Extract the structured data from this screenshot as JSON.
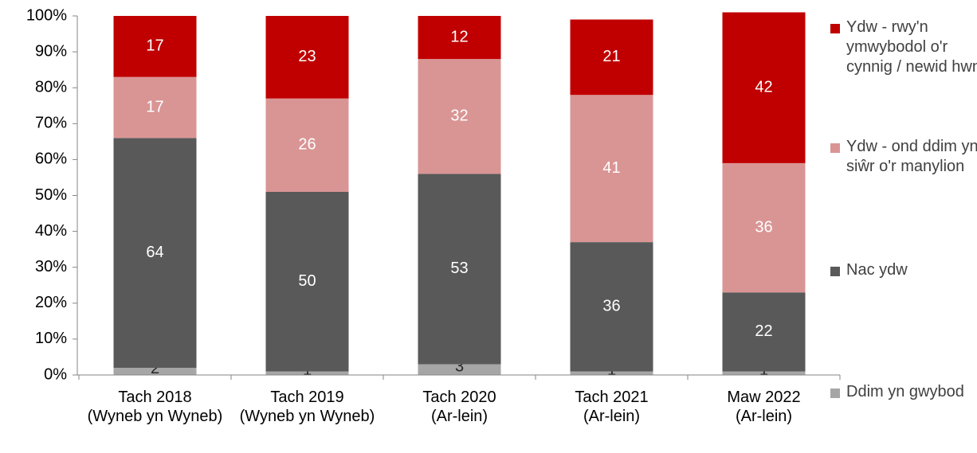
{
  "chart_data": {
    "type": "bar",
    "stacked": true,
    "categories": [
      "Tach 2018\n(Wyneb yn Wyneb)",
      "Tach 2019\n(Wyneb yn Wyneb)",
      "Tach 2020\n(Ar-lein)",
      "Tach 2021\n(Ar-lein)",
      "Maw 2022\n(Ar-lein)"
    ],
    "series": [
      {
        "name": "Ddim yn gwybod",
        "color": "#a6a6a6",
        "values": [
          2,
          1,
          3,
          1,
          1
        ]
      },
      {
        "name": "Nac ydw",
        "color": "#595959",
        "values": [
          64,
          50,
          53,
          36,
          22
        ]
      },
      {
        "name": "Ydw - ond ddim yn siŵr o'r manylion",
        "color": "#d99594",
        "values": [
          17,
          26,
          32,
          41,
          36
        ]
      },
      {
        "name": "Ydw - rwy'n ymwybodol o'r cynnig / newid hwn",
        "color": "#c00000",
        "values": [
          17,
          23,
          12,
          21,
          42
        ]
      }
    ],
    "ylim": [
      0,
      100
    ],
    "yticks": [
      {
        "value": 0,
        "label": "0%"
      },
      {
        "value": 10,
        "label": "10%"
      },
      {
        "value": 20,
        "label": "20%"
      },
      {
        "value": 30,
        "label": "30%"
      },
      {
        "value": 40,
        "label": "40%"
      },
      {
        "value": 50,
        "label": "50%"
      },
      {
        "value": 60,
        "label": "60%"
      },
      {
        "value": 70,
        "label": "70%"
      },
      {
        "value": 80,
        "label": "80%"
      },
      {
        "value": 90,
        "label": "90%"
      },
      {
        "value": 100,
        "label": "100%"
      }
    ],
    "grid": false,
    "legend": "right"
  }
}
